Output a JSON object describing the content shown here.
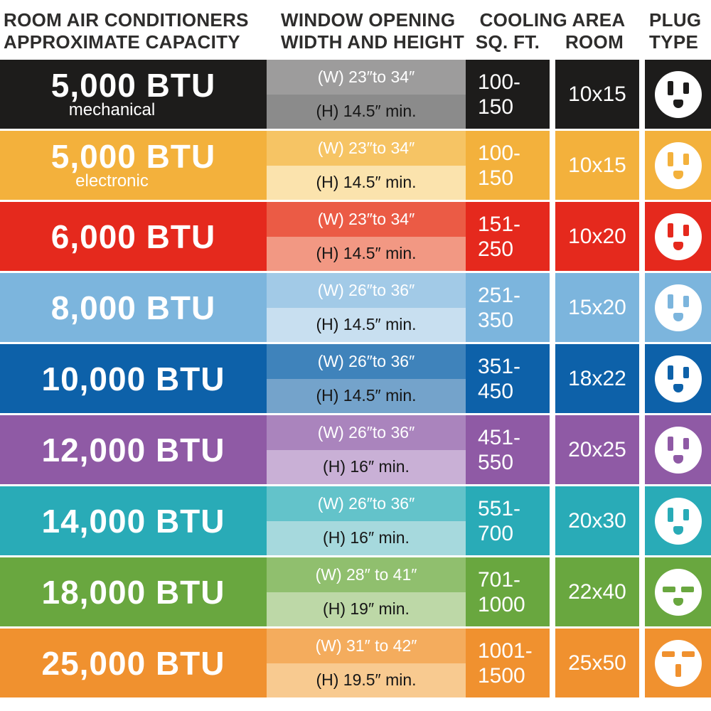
{
  "header": {
    "capacity_line1": "ROOM AIR CONDITIONERS",
    "capacity_line2": "APPROXIMATE CAPACITY",
    "window_line1": "WINDOW OPENING",
    "window_line2": "WIDTH AND HEIGHT",
    "cooling_line1": "COOLING AREA",
    "cooling_sqft": "SQ. FT.",
    "cooling_room": "ROOM",
    "plug_line1": "PLUG",
    "plug_line2": "TYPE"
  },
  "rows": [
    {
      "capacity": "5,000 BTU",
      "subtitle": "mechanical",
      "width": "(W) 23″to 34″",
      "height": "(H) 14.5″ min.",
      "sqft1": "100-",
      "sqft2": "150",
      "room": "10x15",
      "plug": "standard",
      "colors": {
        "main": "#1d1c1b",
        "w_band": "#9d9c9c",
        "h_band": "#8b8b8b"
      }
    },
    {
      "capacity": "5,000 BTU",
      "subtitle": "electronic",
      "width": "(W) 23″to 34″",
      "height": "(H) 14.5″ min.",
      "sqft1": "100-",
      "sqft2": "150",
      "room": "10x15",
      "plug": "standard",
      "colors": {
        "main": "#f3b13c",
        "w_band": "#f6c464",
        "h_band": "#fbe3ad"
      }
    },
    {
      "capacity": "6,000 BTU",
      "width": "(W) 23″to 34″",
      "height": "(H) 14.5″ min.",
      "sqft1": "151-",
      "sqft2": "250",
      "room": "10x20",
      "plug": "standard",
      "colors": {
        "main": "#e5291d",
        "w_band": "#eb5b45",
        "h_band": "#f29883"
      }
    },
    {
      "capacity": "8,000 BTU",
      "width": "(W) 26″to 36″",
      "height": "(H) 14.5″ min.",
      "sqft1": "251-",
      "sqft2": "350",
      "room": "15x20",
      "plug": "standard",
      "colors": {
        "main": "#7cb5dd",
        "w_band": "#a2cae7",
        "h_band": "#c8dff0"
      }
    },
    {
      "capacity": "10,000 BTU",
      "width": "(W) 26″to 36″",
      "height": "(H) 14.5″ min.",
      "sqft1": "351-",
      "sqft2": "450",
      "room": "18x22",
      "plug": "standard",
      "colors": {
        "main": "#0d61a9",
        "w_band": "#3f83bb",
        "h_band": "#74a3cb"
      }
    },
    {
      "capacity": "12,000 BTU",
      "width": "(W) 26″to 36″",
      "height": "(H) 16″ min.",
      "sqft1": "451-",
      "sqft2": "550",
      "room": "20x25",
      "plug": "standard",
      "colors": {
        "main": "#8f5aa5",
        "w_band": "#aa84bd",
        "h_band": "#c9b0d6"
      }
    },
    {
      "capacity": "14,000 BTU",
      "width": "(W) 26″to 36″",
      "height": "(H) 16″ min.",
      "sqft1": "551-",
      "sqft2": "700",
      "room": "20x30",
      "plug": "standard",
      "colors": {
        "main": "#29abb7",
        "w_band": "#63c3ca",
        "h_band": "#a6d9dd"
      }
    },
    {
      "capacity": "18,000 BTU",
      "width": "(W) 28″ to 41″",
      "height": "(H) 19″ min.",
      "sqft1": "701-",
      "sqft2": "1000",
      "room": "22x40",
      "plug": "horizontal",
      "colors": {
        "main": "#69a73f",
        "w_band": "#90bf6e",
        "h_band": "#bdd8a7"
      }
    },
    {
      "capacity": "25,000 BTU",
      "width": "(W) 31″ to 42″",
      "height": "(H) 19.5″ min.",
      "sqft1": "1001-",
      "sqft2": "1500",
      "room": "25x50",
      "plug": "tandem",
      "colors": {
        "main": "#f0912f",
        "w_band": "#f4ac5d",
        "h_band": "#f8ca90"
      }
    }
  ],
  "chart_data": {
    "type": "table",
    "title": "Room Air Conditioners Approximate Capacity",
    "columns": [
      "Capacity",
      "Window Opening Width",
      "Window Opening Height",
      "Cooling Area Sq. Ft.",
      "Cooling Area Room",
      "Plug Type"
    ],
    "rows": [
      [
        "5,000 BTU (mechanical)",
        "(W) 23″ to 34″",
        "(H) 14.5″ min.",
        "100-150",
        "10x15",
        "standard vertical 3-prong"
      ],
      [
        "5,000 BTU (electronic)",
        "(W) 23″ to 34″",
        "(H) 14.5″ min.",
        "100-150",
        "10x15",
        "standard vertical 3-prong"
      ],
      [
        "6,000 BTU",
        "(W) 23″ to 34″",
        "(H) 14.5″ min.",
        "151-250",
        "10x20",
        "standard vertical 3-prong"
      ],
      [
        "8,000 BTU",
        "(W) 26″ to 36″",
        "(H) 14.5″ min.",
        "251-350",
        "15x20",
        "standard vertical 3-prong"
      ],
      [
        "10,000 BTU",
        "(W) 26″ to 36″",
        "(H) 14.5″ min.",
        "351-450",
        "18x22",
        "standard vertical 3-prong"
      ],
      [
        "12,000 BTU",
        "(W) 26″ to 36″",
        "(H) 16″ min.",
        "451-550",
        "20x25",
        "standard vertical 3-prong"
      ],
      [
        "14,000 BTU",
        "(W) 26″ to 36″",
        "(H) 16″ min.",
        "551-700",
        "20x30",
        "standard vertical 3-prong"
      ],
      [
        "18,000 BTU",
        "(W) 28″ to 41″",
        "(H) 19″ min.",
        "701-1000",
        "22x40",
        "horizontal-slot 3-prong"
      ],
      [
        "25,000 BTU",
        "(W) 31″ to 42″",
        "(H) 19.5″ min.",
        "1001-1500",
        "25x50",
        "dryer-style 3-slot"
      ]
    ]
  }
}
